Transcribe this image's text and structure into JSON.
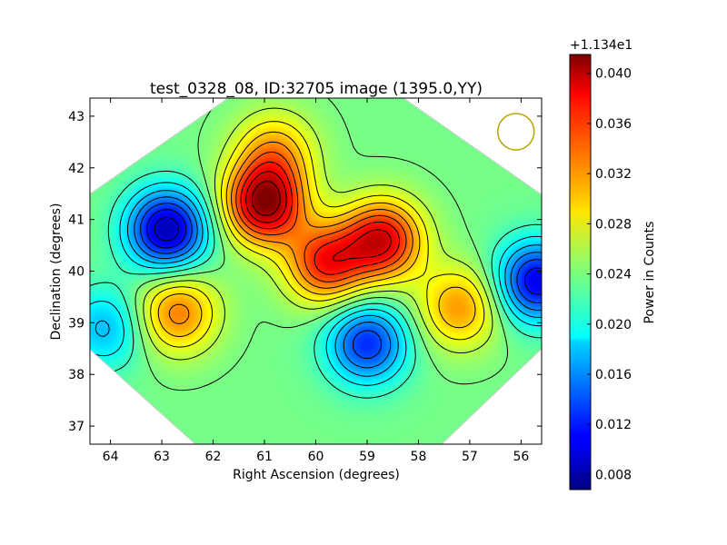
{
  "chart_data": {
    "type": "heatmap",
    "title": "test_0328_08, ID:32705 image (1395.0,YY)",
    "xlabel": "Right Ascension (degrees)",
    "ylabel": "Declination (degrees)",
    "xlim": [
      64.4,
      55.6
    ],
    "ylim": [
      36.65,
      43.35
    ],
    "xticks": [
      "64",
      "63",
      "62",
      "61",
      "60",
      "59",
      "58",
      "57",
      "56"
    ],
    "yticks": [
      "37",
      "38",
      "39",
      "40",
      "41",
      "42",
      "43"
    ],
    "colorbar": {
      "label": "Power in Counts",
      "offset_text": "+1.134e1",
      "range": [
        0.0068,
        0.0415
      ],
      "ticks": [
        "0.008",
        "0.012",
        "0.016",
        "0.020",
        "0.024",
        "0.028",
        "0.032",
        "0.036",
        "0.040"
      ],
      "colormap": "jet"
    },
    "field": {
      "base": 0.0238,
      "features": [
        {
          "label": "Trough west",
          "ra": 62.9,
          "dec": 40.8,
          "peak": 0.0085
        },
        {
          "label": "Trough south",
          "ra": 59.0,
          "dec": 38.6,
          "peak": 0.0125
        },
        {
          "label": "Trough east",
          "ra": 55.7,
          "dec": 39.8,
          "peak": 0.0105
        },
        {
          "label": "Trough south-west",
          "ra": 64.1,
          "dec": 38.9,
          "peak": 0.0175
        },
        {
          "label": "Peak north",
          "ra": 61.0,
          "dec": 41.3,
          "peak": 0.0405
        },
        {
          "label": "Peak center-east",
          "ra": 58.7,
          "dec": 40.6,
          "peak": 0.038
        },
        {
          "label": "Peak center",
          "ra": 59.8,
          "dec": 40.15,
          "peak": 0.036
        },
        {
          "label": "Peak west",
          "ra": 62.7,
          "dec": 39.2,
          "peak": 0.033
        },
        {
          "label": "Peak east",
          "ra": 57.2,
          "dec": 39.3,
          "peak": 0.032
        },
        {
          "label": "Peak north rim",
          "ra": 60.8,
          "dec": 42.3,
          "peak": 0.031
        }
      ]
    },
    "contours": {
      "levels": [
        0.01,
        0.012,
        0.014,
        0.016,
        0.018,
        0.02,
        0.022,
        0.024,
        0.026,
        0.028,
        0.03,
        0.032,
        0.034,
        0.036,
        0.038,
        0.04
      ],
      "color": "#000000"
    },
    "beam_marker": {
      "shape": "circle",
      "ra": 56.1,
      "dec": 42.7,
      "color": "#b5a500"
    }
  }
}
